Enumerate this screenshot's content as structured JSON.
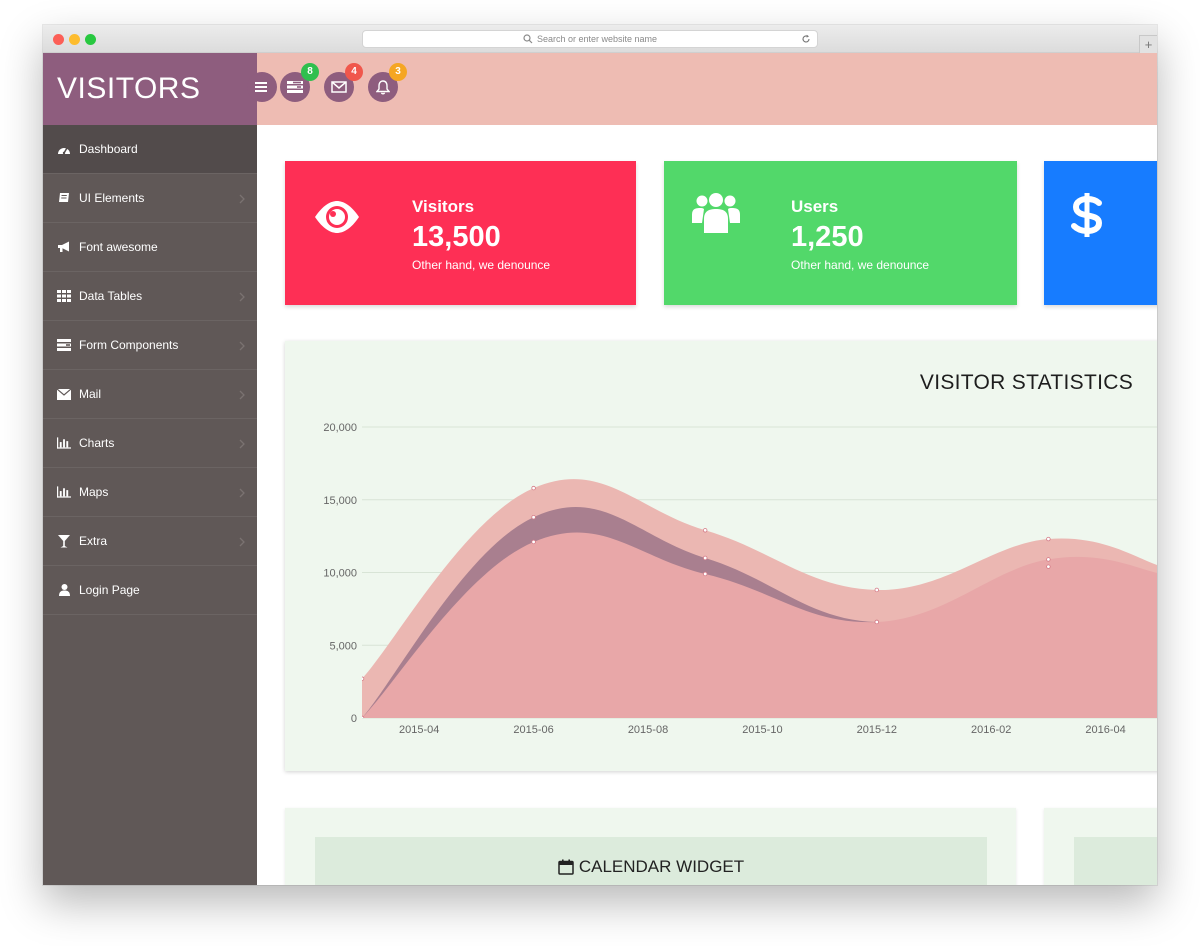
{
  "browser": {
    "url_placeholder": "Search or enter website name"
  },
  "brand": {
    "title": "VISITORS"
  },
  "topbar": {
    "buttons": [
      {
        "icon": "tasks-icon",
        "badge": "8",
        "badge_color": "#2fbf4e"
      },
      {
        "icon": "envelope-icon",
        "badge": "4",
        "badge_color": "#f0574c"
      },
      {
        "icon": "bell-icon",
        "badge": "3",
        "badge_color": "#f5a623"
      }
    ]
  },
  "sidebar": {
    "items": [
      {
        "label": "Dashboard",
        "icon": "dashboard-icon",
        "active": true,
        "chevron": false
      },
      {
        "label": "UI Elements",
        "icon": "book-icon",
        "active": false,
        "chevron": true
      },
      {
        "label": "Font awesome",
        "icon": "bullhorn-icon",
        "active": false,
        "chevron": false
      },
      {
        "label": "Data Tables",
        "icon": "table-icon",
        "active": false,
        "chevron": true
      },
      {
        "label": "Form Components",
        "icon": "form-icon",
        "active": false,
        "chevron": true
      },
      {
        "label": "Mail",
        "icon": "envelope-icon",
        "active": false,
        "chevron": true
      },
      {
        "label": "Charts",
        "icon": "bar-chart-icon",
        "active": false,
        "chevron": true
      },
      {
        "label": "Maps",
        "icon": "bar-chart-icon",
        "active": false,
        "chevron": true
      },
      {
        "label": "Extra",
        "icon": "cocktail-icon",
        "active": false,
        "chevron": true
      },
      {
        "label": "Login Page",
        "icon": "user-icon",
        "active": false,
        "chevron": false
      }
    ]
  },
  "stats": [
    {
      "title": "Visitors",
      "value": "13,500",
      "desc": "Other hand, we denounce",
      "color": "#fe2f55",
      "icon": "eye-icon"
    },
    {
      "title": "Users",
      "value": "1,250",
      "desc": "Other hand, we denounce",
      "color": "#52d86a",
      "icon": "users-icon"
    },
    {
      "title": "",
      "value": "",
      "desc": "",
      "color": "#177cff",
      "icon": "dollar-icon"
    }
  ],
  "chart_data": {
    "type": "area",
    "title": "VISITOR STATISTICS",
    "x_ticks": [
      "2015-04",
      "2015-06",
      "2015-08",
      "2015-10",
      "2015-12",
      "2016-02",
      "2016-04"
    ],
    "y_ticks": [
      "0",
      "5,000",
      "10,000",
      "15,000",
      "20,000"
    ],
    "ylim": [
      0,
      20000
    ],
    "x": [
      "2015-03",
      "2015-06",
      "2015-09",
      "2015-12",
      "2016-03",
      "2016-05"
    ],
    "series": [
      {
        "values": [
          2700,
          15800,
          12900,
          8800,
          12300,
          10400
        ],
        "color": "#ebb7b2"
      },
      {
        "values": [
          0,
          13800,
          11000,
          6600,
          10400,
          9900
        ],
        "color": "#a97f8f"
      },
      {
        "values": [
          0,
          12100,
          9900,
          6600,
          10900,
          9900
        ],
        "color": "#e8a7a8"
      }
    ],
    "grid": true
  },
  "widgets": [
    {
      "title": "CALENDAR WIDGET",
      "icon": "calendar-icon"
    },
    {
      "title": "",
      "icon": ""
    }
  ]
}
